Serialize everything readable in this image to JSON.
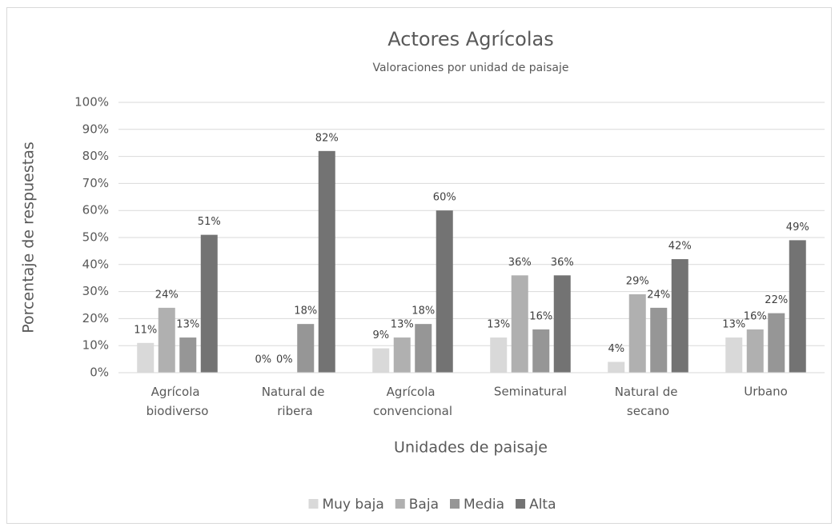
{
  "chart_data": {
    "type": "bar",
    "title": "Actores Agrícolas",
    "subtitle": "Valoraciones por unidad de paisaje",
    "x_label": "Unidades de paisaje",
    "y_label": "Porcentaje de respuestas",
    "categories": [
      "Agrícola biodiverso",
      "Natural de ribera",
      "Agrícola convencional",
      "Seminatural",
      "Natural de secano",
      "Urbano"
    ],
    "series": [
      {
        "name": "Muy baja",
        "color": "#d9d9d9",
        "values": [
          11,
          0,
          9,
          13,
          4,
          13
        ],
        "value_labels": [
          "11%",
          "0%",
          "9%",
          "13%",
          "4%",
          "13%"
        ]
      },
      {
        "name": "Baja",
        "color": "#b0b0b0",
        "values": [
          24,
          0,
          13,
          36,
          29,
          16
        ],
        "value_labels": [
          "24%",
          "0%",
          "13%",
          "36%",
          "29%",
          "16%"
        ]
      },
      {
        "name": "Media",
        "color": "#969696",
        "values": [
          13,
          18,
          18,
          16,
          24,
          22
        ],
        "value_labels": [
          "13%",
          "18%",
          "18%",
          "16%",
          "24%",
          "22%"
        ]
      },
      {
        "name": "Alta",
        "color": "#737373",
        "values": [
          51,
          82,
          60,
          36,
          42,
          49
        ],
        "value_labels": [
          "51%",
          "82%",
          "60%",
          "36%",
          "42%",
          "49%"
        ]
      }
    ],
    "ylim": [
      0,
      100
    ],
    "yticks": [
      {
        "value": 0,
        "label": "0%"
      },
      {
        "value": 10,
        "label": "10%"
      },
      {
        "value": 20,
        "label": "20%"
      },
      {
        "value": 30,
        "label": "30%"
      },
      {
        "value": 40,
        "label": "40%"
      },
      {
        "value": 50,
        "label": "50%"
      },
      {
        "value": 60,
        "label": "60%"
      },
      {
        "value": 70,
        "label": "70%"
      },
      {
        "value": 80,
        "label": "80%"
      },
      {
        "value": 90,
        "label": "90%"
      },
      {
        "value": 100,
        "label": "100%"
      }
    ],
    "grid": true,
    "legend": "bottom"
  }
}
